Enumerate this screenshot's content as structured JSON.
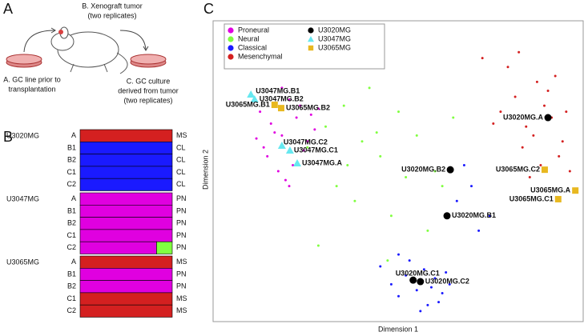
{
  "panel_a": {
    "label": "A",
    "xenograft": [
      "B. Xenograft tumor",
      "(two replicates)"
    ],
    "source": [
      "A. GC line prior to",
      "transplantation"
    ],
    "culture": [
      "C. GC culture",
      "derived from tumor",
      "(two replicates)"
    ]
  },
  "panel_b": {
    "label": "B",
    "groups": [
      {
        "name": "U3020MG",
        "rows": [
          {
            "sample": "A",
            "subtype": "MS",
            "colors": [
              "#d42020"
            ],
            "fractions": [
              100
            ]
          },
          {
            "sample": "B1",
            "subtype": "CL",
            "colors": [
              "#1a1aff"
            ],
            "fractions": [
              100
            ]
          },
          {
            "sample": "B2",
            "subtype": "CL",
            "colors": [
              "#1a1aff"
            ],
            "fractions": [
              100
            ]
          },
          {
            "sample": "C1",
            "subtype": "CL",
            "colors": [
              "#1a1aff"
            ],
            "fractions": [
              100
            ]
          },
          {
            "sample": "C2",
            "subtype": "CL",
            "colors": [
              "#1a1aff"
            ],
            "fractions": [
              100
            ]
          }
        ]
      },
      {
        "name": "U3047MG",
        "rows": [
          {
            "sample": "A",
            "subtype": "PN",
            "colors": [
              "#e000e0"
            ],
            "fractions": [
              100
            ]
          },
          {
            "sample": "B1",
            "subtype": "PN",
            "colors": [
              "#e000e0"
            ],
            "fractions": [
              100
            ]
          },
          {
            "sample": "B2",
            "subtype": "PN",
            "colors": [
              "#e000e0"
            ],
            "fractions": [
              100
            ]
          },
          {
            "sample": "C1",
            "subtype": "PN",
            "colors": [
              "#e000e0"
            ],
            "fractions": [
              100
            ]
          },
          {
            "sample": "C2",
            "subtype": "PN",
            "colors": [
              "#e000e0",
              "#80ff40"
            ],
            "fractions": [
              83,
              17
            ]
          }
        ]
      },
      {
        "name": "U3065MG",
        "rows": [
          {
            "sample": "A",
            "subtype": "MS",
            "colors": [
              "#d42020"
            ],
            "fractions": [
              100
            ]
          },
          {
            "sample": "B1",
            "subtype": "PN",
            "colors": [
              "#e000e0"
            ],
            "fractions": [
              100
            ]
          },
          {
            "sample": "B2",
            "subtype": "PN",
            "colors": [
              "#e000e0"
            ],
            "fractions": [
              100
            ]
          },
          {
            "sample": "C1",
            "subtype": "MS",
            "colors": [
              "#d42020"
            ],
            "fractions": [
              100
            ]
          },
          {
            "sample": "C2",
            "subtype": "MS",
            "colors": [
              "#d42020"
            ],
            "fractions": [
              100
            ]
          }
        ]
      }
    ]
  },
  "chart_data": {
    "type": "scatter",
    "panel_label": "C",
    "x_label": "Dimension 1",
    "y_label": "Dimension 2",
    "xlim": [
      0,
      100
    ],
    "ylim": [
      0,
      100
    ],
    "series": [
      {
        "name": "Proneural",
        "color": "#e000e0",
        "marker": "dot",
        "x": [
          12,
          15,
          18,
          20,
          22,
          25,
          14,
          17,
          23,
          27,
          13,
          19,
          21,
          26,
          16,
          24,
          28,
          11,
          20,
          18
        ],
        "y": [
          70,
          66,
          62,
          74,
          68,
          60,
          55,
          50,
          72,
          64,
          58,
          47,
          52,
          69,
          63,
          57,
          71,
          61,
          45,
          78
        ]
      },
      {
        "name": "Neural",
        "color": "#80ff40",
        "marker": "dot",
        "x": [
          25,
          30,
          35,
          40,
          45,
          50,
          55,
          60,
          33,
          42,
          38,
          48,
          52,
          58,
          28,
          36,
          44,
          62,
          47,
          65
        ],
        "y": [
          58,
          65,
          72,
          60,
          55,
          70,
          62,
          50,
          45,
          78,
          40,
          35,
          48,
          30,
          25,
          52,
          63,
          45,
          20,
          68
        ]
      },
      {
        "name": "Classical",
        "color": "#1a1aff",
        "marker": "dot",
        "x": [
          48,
          50,
          52,
          55,
          58,
          60,
          62,
          45,
          53,
          57,
          61,
          64,
          50,
          56,
          59,
          63,
          66,
          70,
          72,
          68,
          75
        ],
        "y": [
          12,
          8,
          15,
          10,
          5,
          14,
          9,
          18,
          20,
          17,
          6,
          12,
          22,
          3,
          11,
          16,
          40,
          45,
          30,
          52,
          35
        ]
      },
      {
        "name": "Mesenchymal",
        "color": "#d42020",
        "marker": "dot",
        "x": [
          78,
          82,
          85,
          88,
          90,
          92,
          95,
          80,
          84,
          87,
          91,
          94,
          97,
          76,
          83,
          89,
          93,
          73,
          86,
          96
        ],
        "y": [
          70,
          75,
          65,
          80,
          72,
          68,
          60,
          85,
          58,
          62,
          77,
          55,
          50,
          66,
          90,
          52,
          82,
          88,
          48,
          70
        ]
      },
      {
        "name": "U3020MG",
        "color": "#000000",
        "marker": "circle",
        "x": [
          91,
          64.2,
          63.3,
          54,
          56
        ],
        "y": [
          68,
          50.5,
          35,
          13.4,
          12.9
        ],
        "labels": [
          "U3020MG.A",
          "U3020MG.B2",
          "U3020MG.B1",
          "U3020MG.C1",
          "U3020MG.C2"
        ]
      },
      {
        "name": "U3047MG",
        "color": "#66e8f0",
        "marker": "triangle",
        "x": [
          9.5,
          10.5,
          18,
          20.2,
          22.2
        ],
        "y": [
          75.8,
          74.2,
          58.6,
          57,
          52.7
        ],
        "labels": [
          "U3047MG.B1",
          "U3047MG.B2",
          "U3047MG.C2",
          "U3047MG.C1",
          "U3047MG.A"
        ]
      },
      {
        "name": "U3065MG",
        "color": "#e8b820",
        "marker": "square",
        "x": [
          16,
          17.8,
          90.1,
          98.5,
          93.8
        ],
        "y": [
          72.3,
          71.2,
          50.5,
          43.5,
          40.6
        ],
        "labels": [
          "U3065MG.B1",
          "U3065MG.B2",
          "U3065MG.C2",
          "U3065MG.A",
          "U3065MG.C1"
        ]
      }
    ]
  }
}
